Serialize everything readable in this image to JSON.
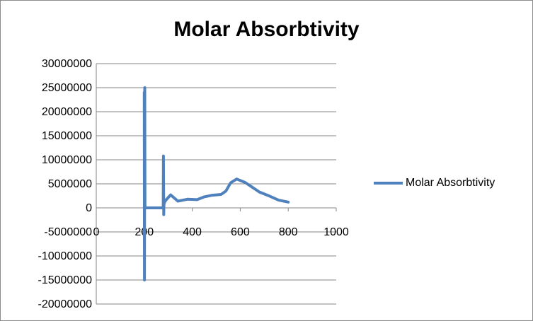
{
  "chart_data": {
    "type": "scatter",
    "title": "Molar Absorbtivity",
    "xlabel": "",
    "ylabel": "",
    "xlim": [
      0,
      1000
    ],
    "ylim": [
      -20000000,
      30000000
    ],
    "x_ticks": [
      "0",
      "200",
      "400",
      "600",
      "800",
      "1000"
    ],
    "y_ticks": [
      "30000000",
      "25000000",
      "20000000",
      "15000000",
      "10000000",
      "5000000",
      "0",
      "-5000000",
      "-10000000",
      "-15000000",
      "-20000000"
    ],
    "grid": "horizontal",
    "legend_position": "right",
    "series": [
      {
        "name": "Molar Absorbtivity",
        "color": "#4f81bd",
        "x": [
          200,
          201,
          202,
          203,
          204,
          230,
          279,
          280,
          281,
          282,
          283,
          290,
          310,
          340,
          380,
          420,
          450,
          480,
          520,
          540,
          560,
          585,
          620,
          650,
          680,
          720,
          760,
          800
        ],
        "y": [
          24000000,
          -15000000,
          25000000,
          0,
          0,
          0,
          0,
          10800000,
          -1400000,
          500000,
          1000000,
          1600000,
          2700000,
          1400000,
          1800000,
          1700000,
          2300000,
          2600000,
          2800000,
          3500000,
          5200000,
          6000000,
          5300000,
          4300000,
          3300000,
          2500000,
          1600000,
          1200000
        ]
      }
    ]
  }
}
